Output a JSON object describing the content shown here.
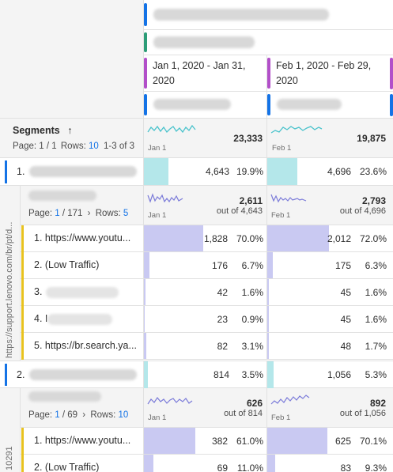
{
  "columns": [
    {
      "date_range": "Jan 1, 2020 - Jan 31, 2020",
      "sparkline_label": "Jan 1",
      "total": "23,333"
    },
    {
      "date_range": "Feb 1, 2020 - Feb 29, 2020",
      "sparkline_label": "Feb 1",
      "total": "19,875"
    }
  ],
  "segments_header": {
    "title": "Segments",
    "sort_icon": "arrow-up-icon",
    "page_prefix": "Page:",
    "page": "1 / 1",
    "rows_label": "Rows:",
    "rows": "10",
    "range": "1-3 of 3"
  },
  "segment1": {
    "label": "1.",
    "values": [
      {
        "count": "4,643",
        "pct": "19.9%",
        "bar": 0.199
      },
      {
        "count": "4,696",
        "pct": "23.6%",
        "bar": 0.236
      }
    ],
    "side_label": "https://support.lenovo.com/br/pt/d...",
    "sub_header": {
      "page_prefix": "Page:",
      "page": "1",
      "page_total": "/ 171",
      "rows_label": "Rows:",
      "rows": "5",
      "totals": [
        {
          "total": "2,611",
          "out_of": "out of 4,643",
          "label": "Jan 1"
        },
        {
          "total": "2,793",
          "out_of": "out of 4,696",
          "label": "Feb 1"
        }
      ]
    },
    "items": [
      {
        "label": "1. https://www.youtu...",
        "values": [
          {
            "count": "1,828",
            "pct": "70.0%",
            "bar": 0.7
          },
          {
            "count": "2,012",
            "pct": "72.0%",
            "bar": 0.72
          }
        ],
        "color": "#e8c21e"
      },
      {
        "label": "2. (Low Traffic)",
        "values": [
          {
            "count": "176",
            "pct": "6.7%",
            "bar": 0.067
          },
          {
            "count": "175",
            "pct": "6.3%",
            "bar": 0.063
          }
        ],
        "color": "#e8c21e"
      },
      {
        "label": "3.",
        "values": [
          {
            "count": "42",
            "pct": "1.6%",
            "bar": 0.016
          },
          {
            "count": "45",
            "pct": "1.6%",
            "bar": 0.016
          }
        ],
        "color": "#e8c21e"
      },
      {
        "label": "4. I",
        "values": [
          {
            "count": "23",
            "pct": "0.9%",
            "bar": 0.009
          },
          {
            "count": "45",
            "pct": "1.6%",
            "bar": 0.016
          }
        ],
        "color": "#e8c21e"
      },
      {
        "label": "5. https://br.search.ya...",
        "values": [
          {
            "count": "82",
            "pct": "3.1%",
            "bar": 0.031
          },
          {
            "count": "48",
            "pct": "1.7%",
            "bar": 0.017
          }
        ],
        "color": "#e8c21e"
      }
    ]
  },
  "segment2": {
    "label": "2.",
    "values": [
      {
        "count": "814",
        "pct": "3.5%",
        "bar": 0.035
      },
      {
        "count": "1,056",
        "pct": "5.3%",
        "bar": 0.053
      }
    ],
    "side_label": "10291",
    "sub_header": {
      "page_prefix": "Page:",
      "page": "1",
      "page_total": "/ 69",
      "rows_label": "Rows:",
      "rows": "10",
      "totals": [
        {
          "total": "626",
          "out_of": "out of 814",
          "label": "Jan 1"
        },
        {
          "total": "892",
          "out_of": "out of 1,056",
          "label": "Feb 1"
        }
      ]
    },
    "items": [
      {
        "label": "1. https://www.youtu...",
        "values": [
          {
            "count": "382",
            "pct": "61.0%",
            "bar": 0.61
          },
          {
            "count": "625",
            "pct": "70.1%",
            "bar": 0.7
          }
        ],
        "color": "#e8c21e"
      },
      {
        "label": "2. (Low Traffic)",
        "values": [
          {
            "count": "69",
            "pct": "11.0%",
            "bar": 0.11
          },
          {
            "count": "83",
            "pct": "9.3%",
            "bar": 0.093
          }
        ],
        "color": "#e8c21e"
      }
    ]
  },
  "colors": {
    "teal_bar": "#b4e7ea",
    "purple_bar": "#c9c9f2",
    "blue_accent": "#1473e6",
    "green_accent": "#2d9d78",
    "magenta_accent": "#b24fc9",
    "yellow_accent": "#e8c21e"
  }
}
